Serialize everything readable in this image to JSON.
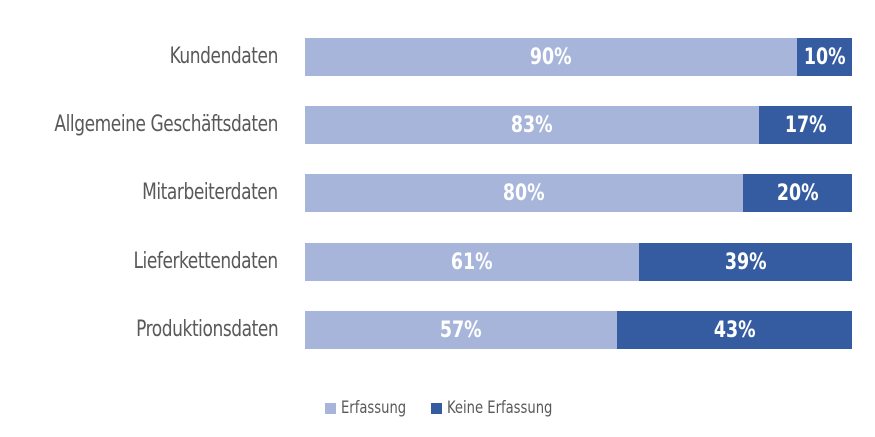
{
  "chart_data": {
    "type": "bar",
    "orientation": "horizontal",
    "stacked": true,
    "percent_stacked": true,
    "title": "",
    "xlabel": "",
    "ylabel": "",
    "categories": [
      "Kundendaten",
      "Allgemeine Geschäftsdaten",
      "Mitarbeiterdaten",
      "Lieferkettendaten",
      "Produktionsdaten"
    ],
    "series": [
      {
        "name": "Erfassung",
        "color": "#a7b5da",
        "values": [
          90,
          83,
          80,
          61,
          57
        ],
        "labels": [
          "90%",
          "83%",
          "80%",
          "61%",
          "57%"
        ]
      },
      {
        "name": "Keine Erfassung",
        "color": "#355ca1",
        "values": [
          10,
          17,
          20,
          39,
          43
        ],
        "labels": [
          "10%",
          "17%",
          "20%",
          "39%",
          "43%"
        ]
      }
    ],
    "xlim": [
      0,
      100
    ],
    "grid": false,
    "legend_position": "bottom"
  },
  "legend": {
    "items": [
      {
        "label": "Erfassung",
        "color": "#a7b5da"
      },
      {
        "label": "Keine Erfassung",
        "color": "#355ca1"
      }
    ]
  }
}
